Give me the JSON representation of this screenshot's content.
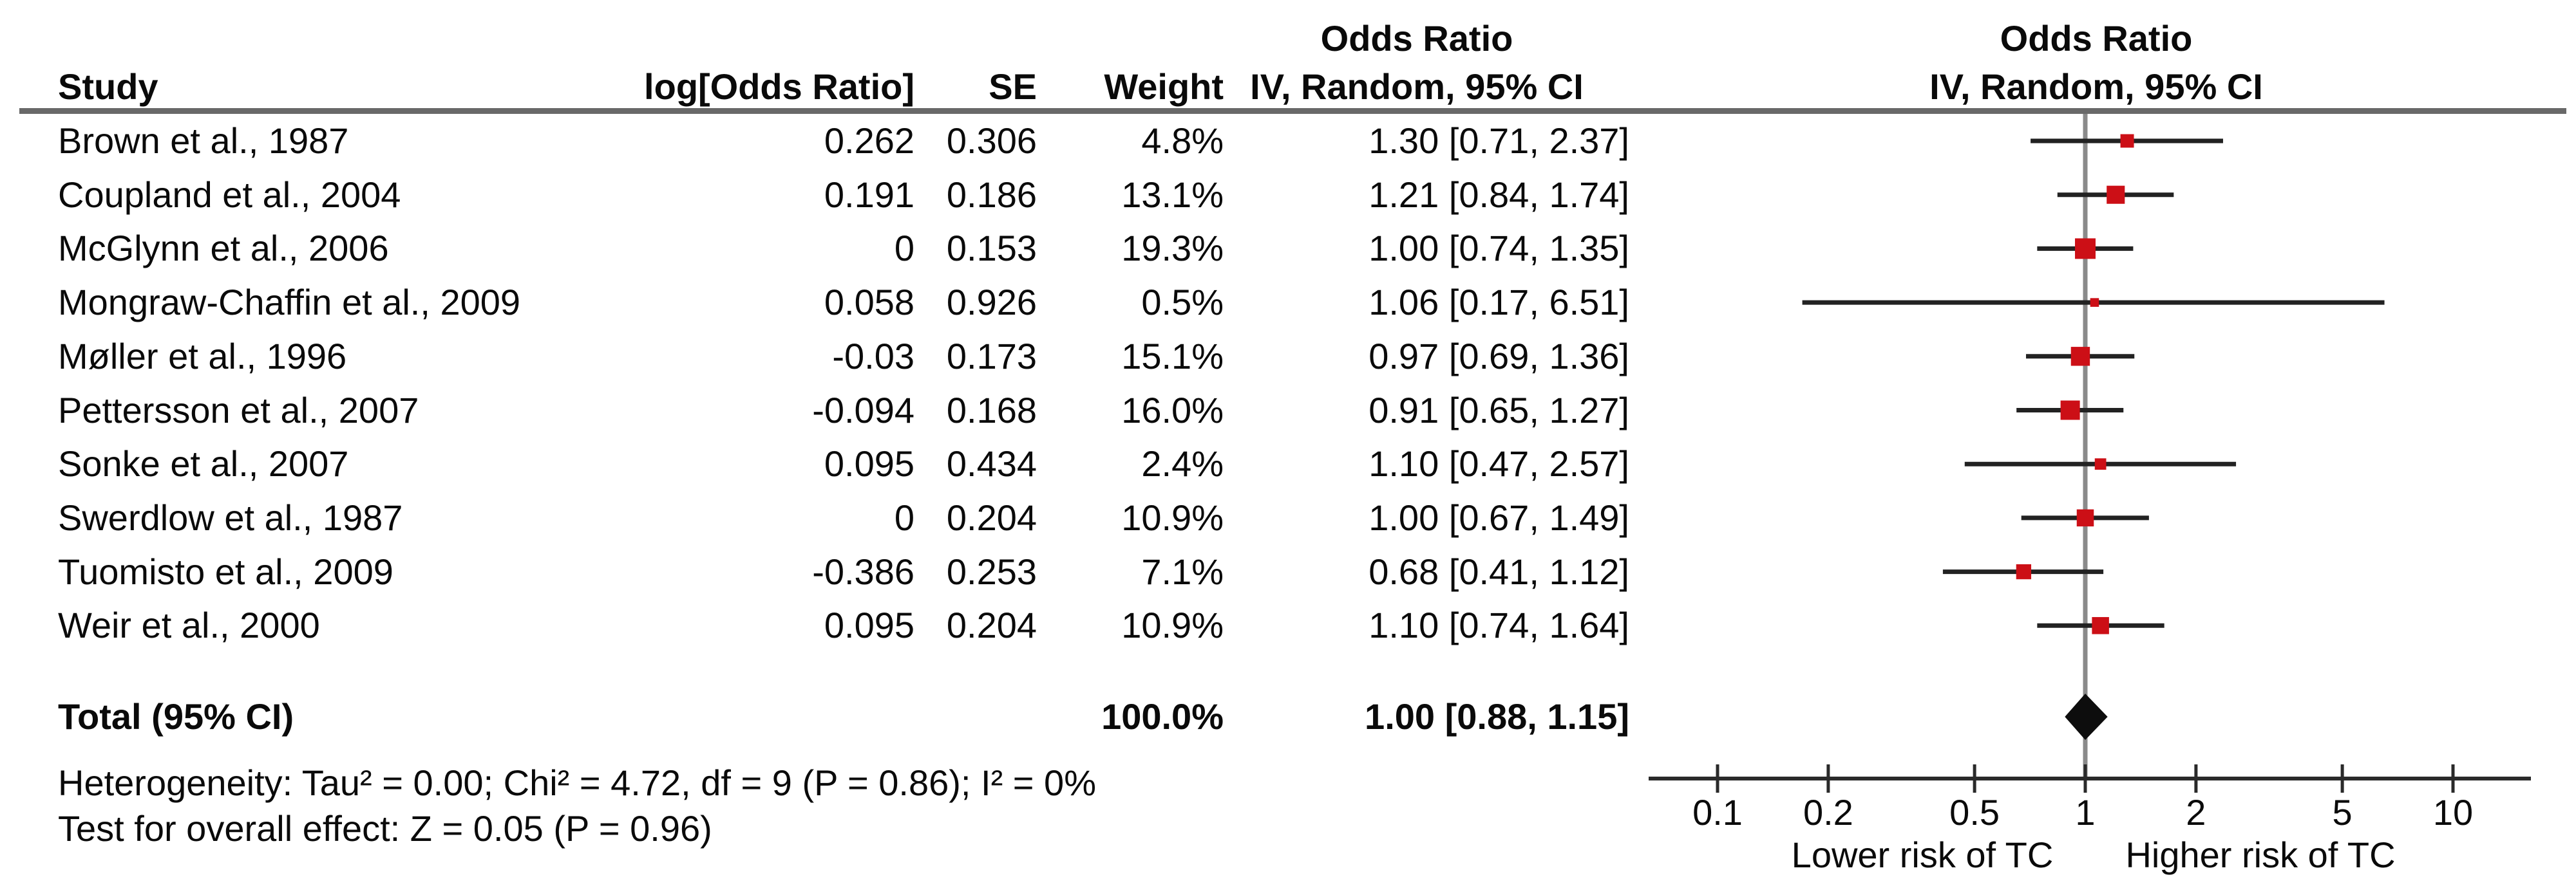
{
  "figure": {
    "left_header": {
      "or": "Odds Ratio",
      "method": "IV, Random, 95% CI"
    },
    "right_header": {
      "or": "Odds Ratio",
      "method": "IV, Random, 95% CI"
    },
    "columns": {
      "study": "Study",
      "log_or": "log[Odds Ratio]",
      "se": "SE",
      "weight": "Weight"
    }
  },
  "chart_data": {
    "type": "forest",
    "effect_measure": "Odds Ratio",
    "model": "IV, Random, 95% CI",
    "x_axis": {
      "scale": "log10",
      "range": [
        0.1,
        10
      ],
      "tick_values": [
        0.1,
        0.2,
        0.5,
        1,
        2,
        5,
        10
      ],
      "tick_labels": [
        "0.1",
        "0.2",
        "0.5",
        "1",
        "2",
        "5",
        "10"
      ],
      "left_label": "Lower risk of TC",
      "right_label": "Higher risk of TC"
    },
    "studies": [
      {
        "name": "Brown et al., 1987",
        "log_or": "0.262",
        "se": "0.306",
        "weight": "4.8%",
        "weight_value": 4.8,
        "or": 1.3,
        "low": 0.71,
        "high": 2.37,
        "ci_label": "1.30 [0.71, 2.37]"
      },
      {
        "name": "Coupland et al., 2004",
        "log_or": "0.191",
        "se": "0.186",
        "weight": "13.1%",
        "weight_value": 13.1,
        "or": 1.21,
        "low": 0.84,
        "high": 1.74,
        "ci_label": "1.21 [0.84, 1.74]"
      },
      {
        "name": "McGlynn et al., 2006",
        "log_or": "0",
        "se": "0.153",
        "weight": "19.3%",
        "weight_value": 19.3,
        "or": 1.0,
        "low": 0.74,
        "high": 1.35,
        "ci_label": "1.00 [0.74, 1.35]"
      },
      {
        "name": "Mongraw-Chaffin et al., 2009",
        "log_or": "0.058",
        "se": "0.926",
        "weight": "0.5%",
        "weight_value": 0.5,
        "or": 1.06,
        "low": 0.17,
        "high": 6.51,
        "ci_label": "1.06 [0.17, 6.51]"
      },
      {
        "name": "Møller et al., 1996",
        "log_or": "-0.03",
        "se": "0.173",
        "weight": "15.1%",
        "weight_value": 15.1,
        "or": 0.97,
        "low": 0.69,
        "high": 1.36,
        "ci_label": "0.97 [0.69, 1.36]"
      },
      {
        "name": "Pettersson et al., 2007",
        "log_or": "-0.094",
        "se": "0.168",
        "weight": "16.0%",
        "weight_value": 16.0,
        "or": 0.91,
        "low": 0.65,
        "high": 1.27,
        "ci_label": "0.91 [0.65, 1.27]"
      },
      {
        "name": "Sonke et al., 2007",
        "log_or": "0.095",
        "se": "0.434",
        "weight": "2.4%",
        "weight_value": 2.4,
        "or": 1.1,
        "low": 0.47,
        "high": 2.57,
        "ci_label": "1.10 [0.47, 2.57]"
      },
      {
        "name": "Swerdlow et al., 1987",
        "log_or": "0",
        "se": "0.204",
        "weight": "10.9%",
        "weight_value": 10.9,
        "or": 1.0,
        "low": 0.67,
        "high": 1.49,
        "ci_label": "1.00 [0.67, 1.49]"
      },
      {
        "name": "Tuomisto et al., 2009",
        "log_or": "-0.386",
        "se": "0.253",
        "weight": "7.1%",
        "weight_value": 7.1,
        "or": 0.68,
        "low": 0.41,
        "high": 1.12,
        "ci_label": "0.68 [0.41, 1.12]"
      },
      {
        "name": "Weir et al., 2000",
        "log_or": "0.095",
        "se": "0.204",
        "weight": "10.9%",
        "weight_value": 10.9,
        "or": 1.1,
        "low": 0.74,
        "high": 1.64,
        "ci_label": "1.10 [0.74, 1.64]"
      }
    ],
    "total": {
      "label": "Total (95% CI)",
      "weight": "100.0%",
      "or": 1.0,
      "low": 0.88,
      "high": 1.15,
      "ci_label": "1.00 [0.88, 1.15]"
    },
    "footnotes": {
      "heterogeneity": "Heterogeneity: Tau² = 0.00; Chi² = 4.72, df = 9 (P = 0.86); I² = 0%",
      "overall": "Test for overall effect: Z = 0.05 (P = 0.96)"
    },
    "colors": {
      "marker": "#cc0f16",
      "ci_line": "#222222",
      "diamond": "#0d0d0d",
      "axis": "#2a2a2a",
      "null_line": "#8a8a8a",
      "header_rule": "#696969",
      "text": "#0a0a0a"
    }
  }
}
